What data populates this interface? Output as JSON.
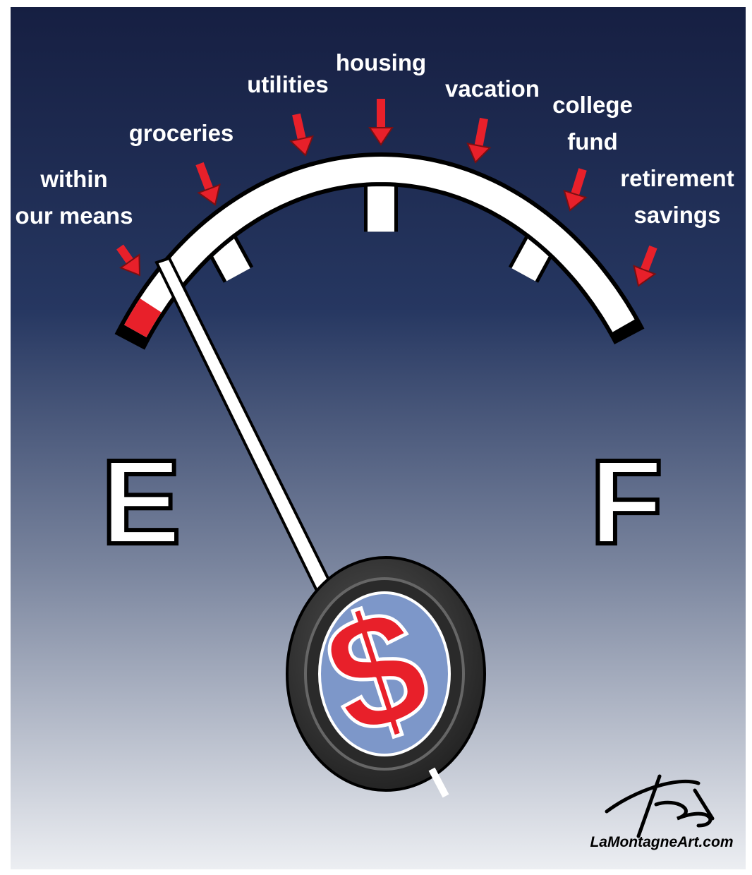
{
  "gauge_labels": [
    {
      "lines": [
        "within",
        "our means"
      ]
    },
    {
      "lines": [
        "groceries"
      ]
    },
    {
      "lines": [
        "utilities"
      ]
    },
    {
      "lines": [
        "housing"
      ]
    },
    {
      "lines": [
        "vacation"
      ]
    },
    {
      "lines": [
        "college",
        "fund"
      ]
    },
    {
      "lines": [
        "retirement",
        "savings"
      ]
    }
  ],
  "empty_mark": "E",
  "full_mark": "F",
  "hub_symbol": "$",
  "credit": "LaMontagneArt.com"
}
